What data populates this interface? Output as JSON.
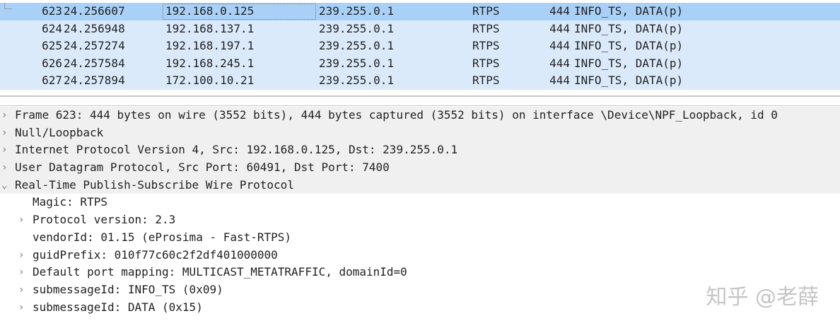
{
  "packets": [
    {
      "no": "623",
      "time": "24.256607",
      "src": "192.168.0.125",
      "dst": "239.255.0.1",
      "proto": "RTPS",
      "len": "444",
      "info": "INFO_TS, DATA(p)",
      "selected": true
    },
    {
      "no": "624",
      "time": "24.256948",
      "src": "192.168.137.1",
      "dst": "239.255.0.1",
      "proto": "RTPS",
      "len": "444",
      "info": "INFO_TS, DATA(p)"
    },
    {
      "no": "625",
      "time": "24.257274",
      "src": "192.168.197.1",
      "dst": "239.255.0.1",
      "proto": "RTPS",
      "len": "444",
      "info": "INFO_TS, DATA(p)"
    },
    {
      "no": "626",
      "time": "24.257584",
      "src": "192.168.245.1",
      "dst": "239.255.0.1",
      "proto": "RTPS",
      "len": "444",
      "info": "INFO_TS, DATA(p)"
    },
    {
      "no": "627",
      "time": "24.257894",
      "src": "172.100.10.21",
      "dst": "239.255.0.1",
      "proto": "RTPS",
      "len": "444",
      "info": "INFO_TS, DATA(p)"
    }
  ],
  "details": [
    {
      "level": 0,
      "arrow": "›",
      "text": "Frame 623: 444 bytes on wire (3552 bits), 444 bytes captured (3552 bits) on interface \\Device\\NPF_Loopback, id 0"
    },
    {
      "level": 0,
      "arrow": "›",
      "text": "Null/Loopback"
    },
    {
      "level": 0,
      "arrow": "›",
      "text": "Internet Protocol Version 4, Src: 192.168.0.125, Dst: 239.255.0.1"
    },
    {
      "level": 0,
      "arrow": "›",
      "text": "User Datagram Protocol, Src Port: 60491, Dst Port: 7400"
    },
    {
      "level": 0,
      "arrow": "⌄",
      "text": "Real-Time Publish-Subscribe Wire Protocol"
    },
    {
      "level": 1,
      "arrow": "",
      "text": "Magic: RTPS"
    },
    {
      "level": 1,
      "arrow": "›",
      "text": "Protocol version: 2.3"
    },
    {
      "level": 1,
      "arrow": "",
      "text": "vendorId: 01.15 (eProsima - Fast-RTPS)"
    },
    {
      "level": 1,
      "arrow": "›",
      "text": "guidPrefix: 010f77c60c2f2df401000000"
    },
    {
      "level": 1,
      "arrow": "›",
      "text": "Default port mapping: MULTICAST_METATRAFFIC, domainId=0"
    },
    {
      "level": 1,
      "arrow": "›",
      "text": "submessageId: INFO_TS (0x09)"
    },
    {
      "level": 1,
      "arrow": "›",
      "text": "submessageId: DATA (0x15)"
    }
  ],
  "watermark": "知乎 @老薛"
}
